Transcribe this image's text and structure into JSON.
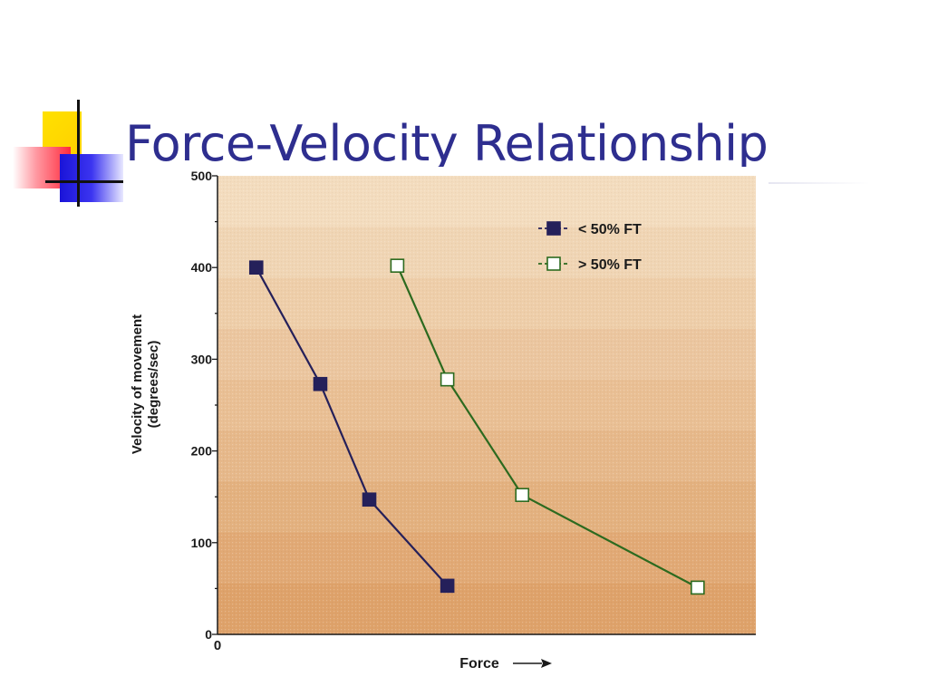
{
  "slide": {
    "title": "Force-Velocity Relationship"
  },
  "colors": {
    "title": "#2e2e8f",
    "series_lt50": "#25205a",
    "series_gt50_line": "#2c6a1f",
    "plot_top": "#f3dcbe",
    "plot_bottom": "#dea26a"
  },
  "chart_data": {
    "type": "line",
    "title": "",
    "xlabel": "Force",
    "ylabel_line1": "Velocity of movement",
    "ylabel_line2": "(degrees/sec)",
    "x_origin_label": "0",
    "xlim": [
      0,
      10
    ],
    "ylim": [
      0,
      500
    ],
    "y_ticks": [
      0,
      100,
      200,
      300,
      400,
      500
    ],
    "y_minor_step": 50,
    "grid": false,
    "legend": "top-right",
    "series": [
      {
        "name": "< 50% FT",
        "marker": "filled-square",
        "color": "#25205a",
        "points": [
          [
            0.72,
            400
          ],
          [
            1.91,
            273
          ],
          [
            2.82,
            147
          ],
          [
            4.27,
            53
          ]
        ]
      },
      {
        "name": "> 50% FT",
        "marker": "open-square",
        "color": "#2c6a1f",
        "points": [
          [
            3.34,
            402
          ],
          [
            4.27,
            278
          ],
          [
            5.66,
            152
          ],
          [
            8.92,
            51
          ]
        ]
      }
    ]
  }
}
